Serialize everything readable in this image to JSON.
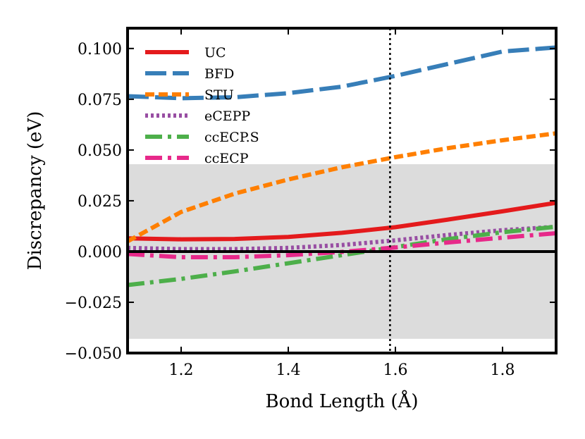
{
  "chart_data": {
    "type": "line",
    "title": "",
    "xlabel": "Bond Length (Å)",
    "ylabel": "Discrepancy (eV)",
    "xlim": [
      1.1,
      1.9
    ],
    "ylim": [
      -0.05,
      0.11
    ],
    "xticks": [
      1.2,
      1.4,
      1.6,
      1.8
    ],
    "xtick_labels": [
      "1.2",
      "1.4",
      "1.6",
      "1.8"
    ],
    "yticks": [
      -0.05,
      -0.025,
      0.0,
      0.025,
      0.05,
      0.075,
      0.1
    ],
    "ytick_labels": [
      "−0.050",
      "−0.025",
      "0.000",
      "0.025",
      "0.050",
      "0.075",
      "0.100"
    ],
    "shaded_band": [
      -0.043,
      0.043
    ],
    "shaded_color": "#dcdcdc",
    "zero_line": 0.0,
    "reference_vline": 1.59,
    "grid": false,
    "legend_position": "top-left",
    "x": [
      1.1,
      1.2,
      1.3,
      1.4,
      1.5,
      1.6,
      1.7,
      1.8,
      1.9
    ],
    "series": [
      {
        "name": "UC",
        "color": "#e41a1c",
        "dash": "solid",
        "values": [
          0.0065,
          0.006,
          0.0062,
          0.0072,
          0.0092,
          0.012,
          0.0158,
          0.0198,
          0.024
        ]
      },
      {
        "name": "BFD",
        "color": "#377eb8",
        "dash": "longdash",
        "values": [
          0.0765,
          0.0755,
          0.076,
          0.078,
          0.0812,
          0.0865,
          0.0925,
          0.0985,
          0.1005
        ]
      },
      {
        "name": "STU",
        "color": "#ff7f00",
        "dash": "shortdash",
        "values": [
          0.005,
          0.0195,
          0.0285,
          0.0355,
          0.0415,
          0.0465,
          0.051,
          0.0548,
          0.0582
        ]
      },
      {
        "name": "eCEPP",
        "color": "#984ea3",
        "dash": "dotted",
        "values": [
          0.0018,
          0.0012,
          0.0012,
          0.0018,
          0.0032,
          0.0055,
          0.0082,
          0.0105,
          0.0122
        ]
      },
      {
        "name": "ccECP.S",
        "color": "#4daf4a",
        "dash": "dashdot",
        "values": [
          -0.0165,
          -0.0135,
          -0.0098,
          -0.0058,
          -0.0018,
          0.0022,
          0.0062,
          0.0095,
          0.0122
        ]
      },
      {
        "name": "ccECP",
        "color": "#e7298a",
        "dash": "dashdot",
        "values": [
          -0.0012,
          -0.0028,
          -0.0028,
          -0.0018,
          -0.0002,
          0.002,
          0.0045,
          0.0068,
          0.009
        ]
      }
    ]
  }
}
